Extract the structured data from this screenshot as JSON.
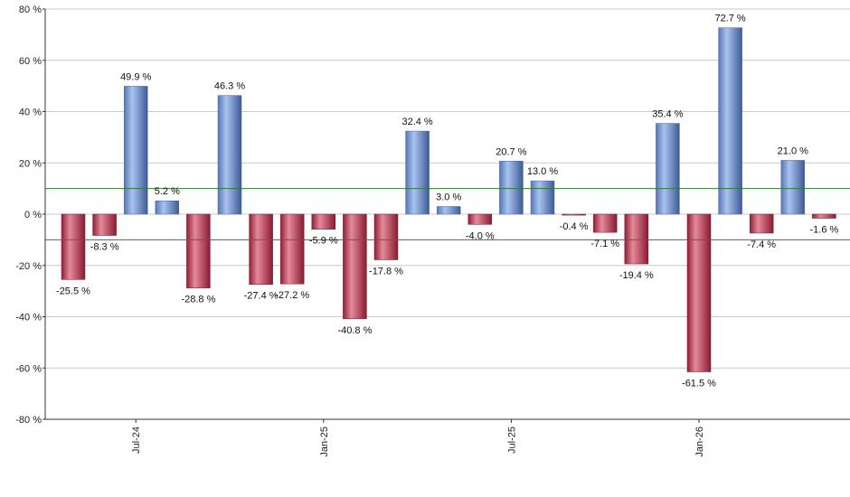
{
  "chart_data": {
    "type": "bar",
    "title": "",
    "xlabel": "",
    "ylabel": "",
    "ylim": [
      -80,
      80
    ],
    "y_ticks": [
      80,
      60,
      40,
      20,
      0,
      -20,
      -40,
      -60,
      -80
    ],
    "y_tick_suffix": " %",
    "grid": true,
    "threshold_lines": [
      10,
      -10
    ],
    "x_tick_labels": [
      {
        "label": "Jul-24",
        "bar_index": 2
      },
      {
        "label": "Jan-25",
        "bar_index": 8
      },
      {
        "label": "Jul-25",
        "bar_index": 14
      },
      {
        "label": "Jan-26",
        "bar_index": 20
      }
    ],
    "values": [
      -25.5,
      -8.3,
      49.9,
      5.2,
      -28.8,
      46.3,
      -27.4,
      -27.2,
      -5.9,
      -40.8,
      -17.8,
      32.4,
      3.0,
      -4.0,
      20.7,
      13.0,
      -0.4,
      -7.1,
      -19.4,
      35.4,
      -61.5,
      72.7,
      -7.4,
      21.0,
      -1.6
    ],
    "data_labels": [
      "-25.5 %",
      "-8.3 %",
      "49.9 %",
      "5.2 %",
      "-28.8 %",
      "46.3 %",
      "-27.4 %",
      "-27.2 %",
      "-5.9 %",
      "-40.8 %",
      "-17.8 %",
      "32.4 %",
      "3.0 %",
      "-4.0 %",
      "20.7 %",
      "13.0 %",
      "-0.4 %",
      "-7.1 %",
      "-19.4 %",
      "35.4 %",
      "-61.5 %",
      "72.7 %",
      "-7.4 %",
      "21.0 %",
      "-1.6 %"
    ],
    "colors": {
      "positive": "#7f9fd6",
      "negative": "#c23a55",
      "threshold": "#2e7d32",
      "grid": "#c8c8c8"
    }
  }
}
